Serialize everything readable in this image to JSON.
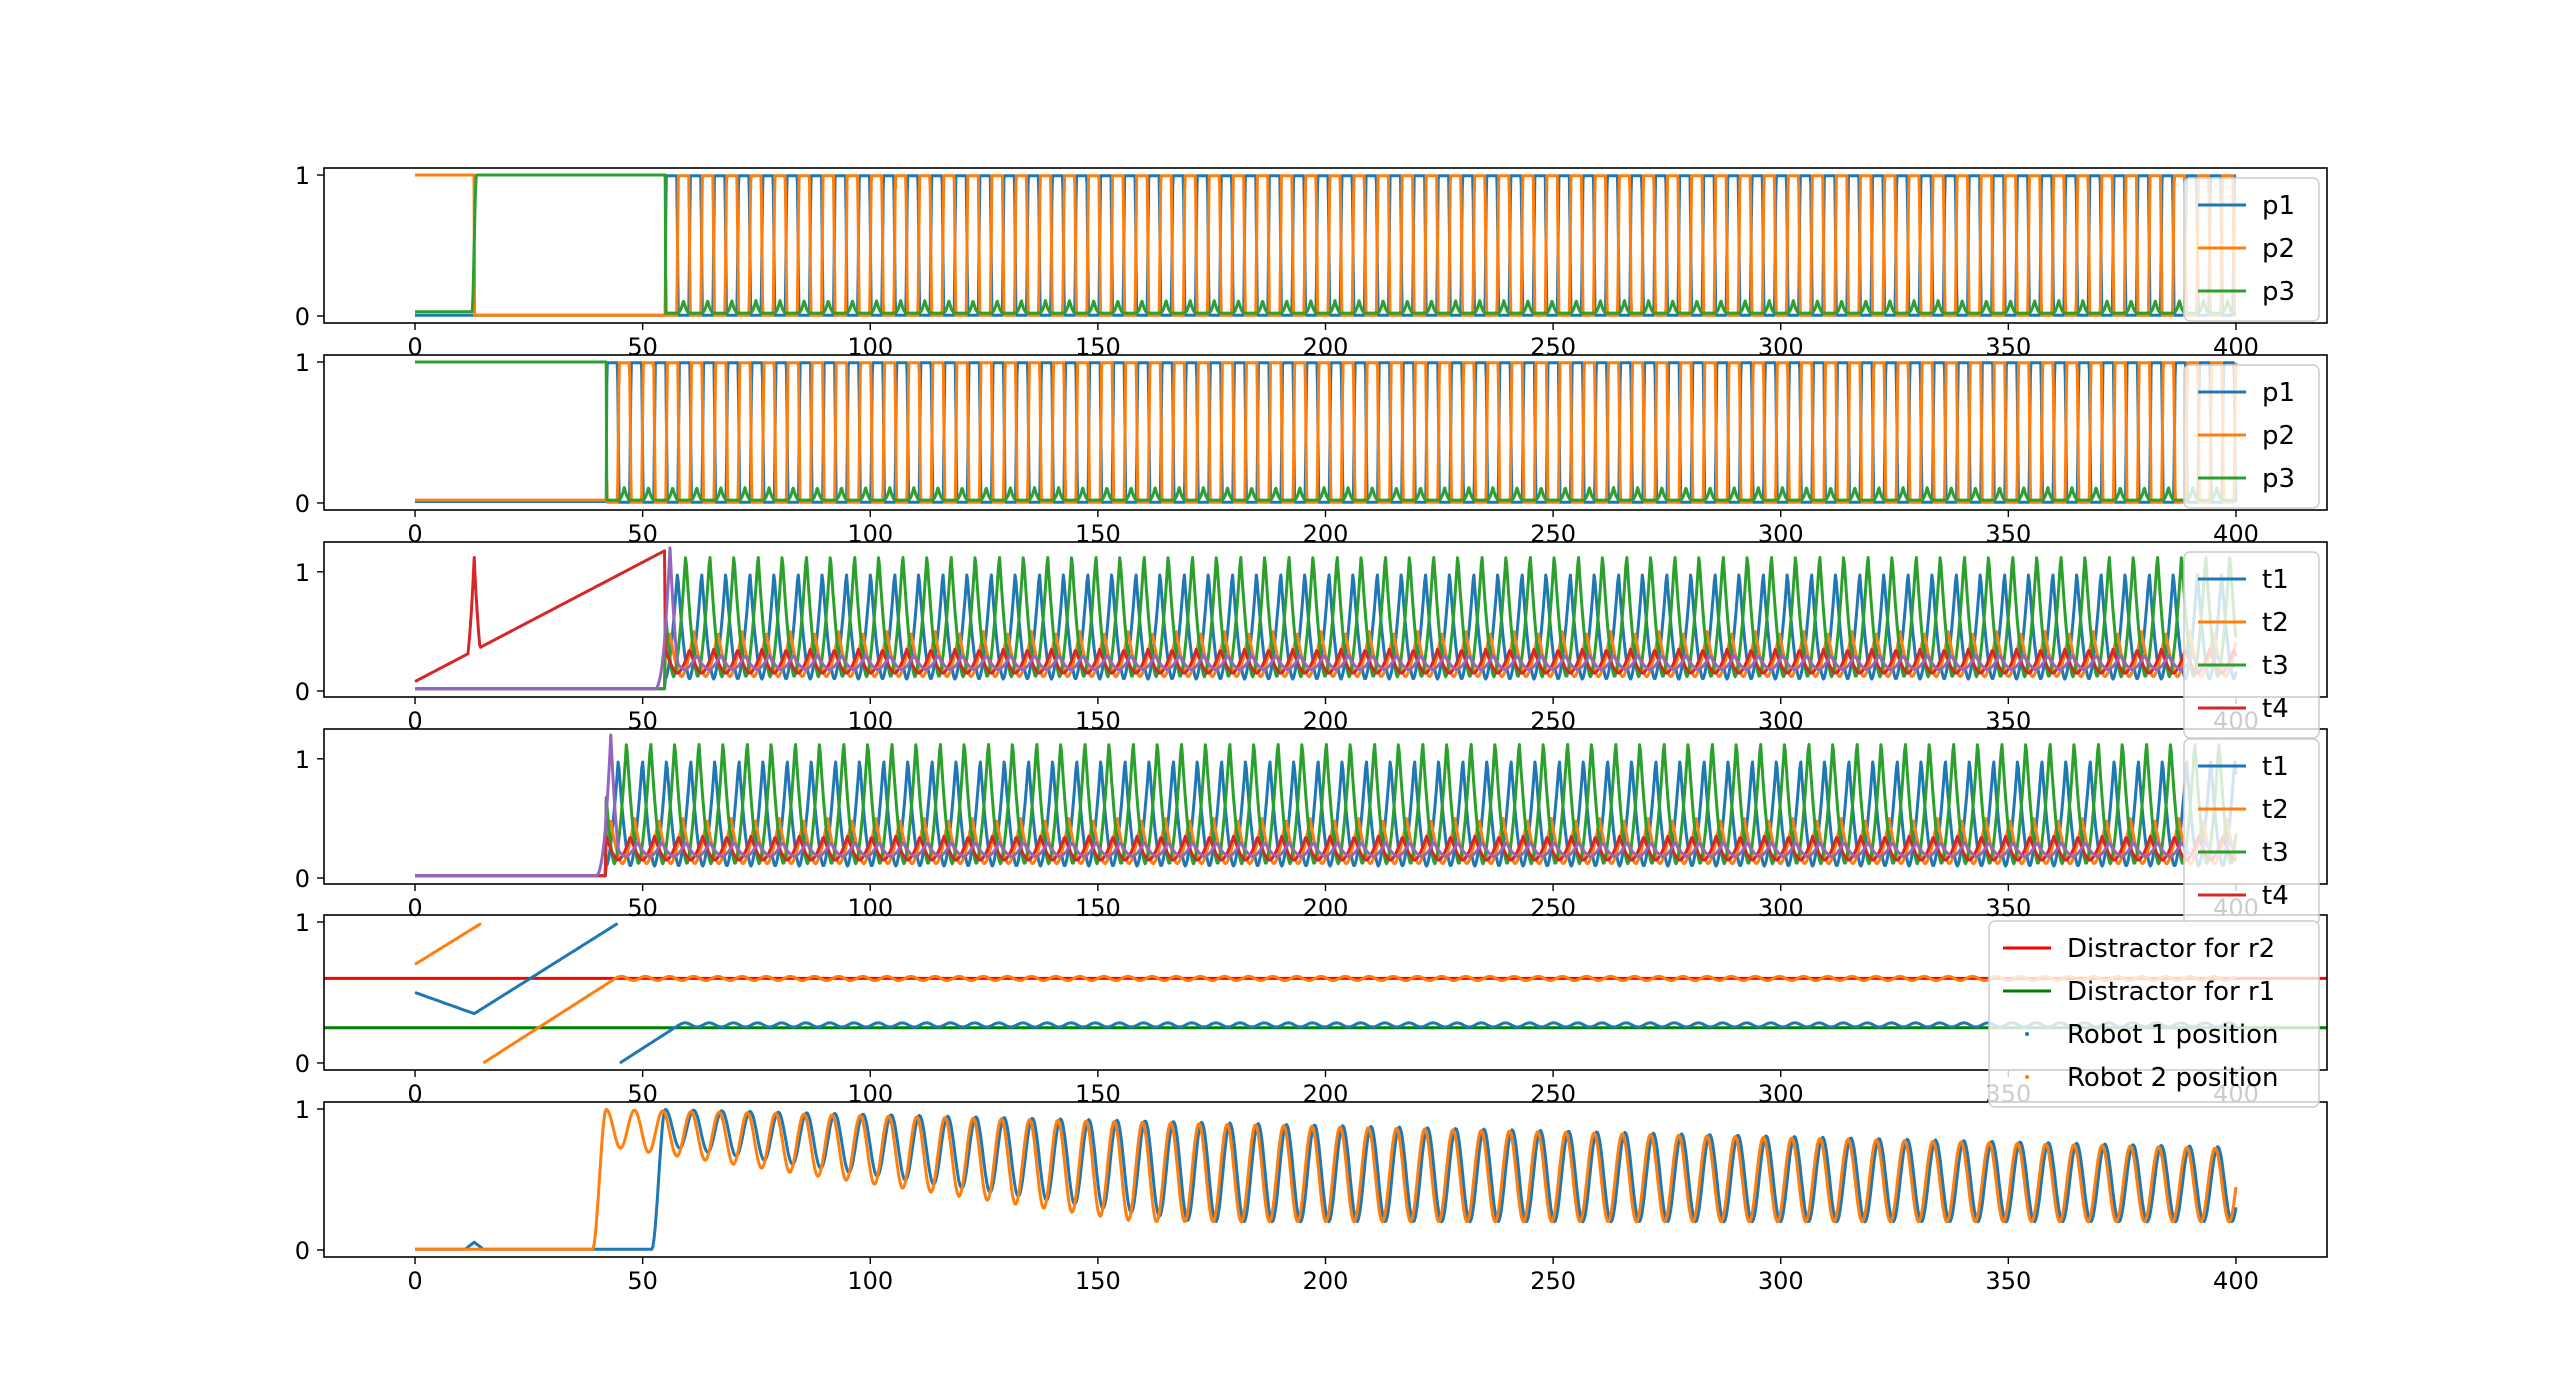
{
  "chart_data": [
    {
      "type": "line",
      "x_range": [
        0,
        400
      ],
      "xlim": [
        -20,
        420
      ],
      "ylim": [
        -0.05,
        1.05
      ],
      "x_ticks": [
        0,
        50,
        100,
        150,
        200,
        250,
        300,
        350,
        400
      ],
      "x_tick_labels": [
        "0",
        "50",
        "100",
        "150",
        "200",
        "250",
        "300",
        "350",
        "400"
      ],
      "y_ticks": [
        0,
        1
      ],
      "y_tick_labels": [
        "0",
        "1"
      ],
      "legend_position": "right",
      "series": [
        {
          "name": "p1",
          "color": "#1f77b4",
          "description": "stays at 0 until t≈55, then oscillates between 0 and 1 with period ≈5.3"
        },
        {
          "name": "p2",
          "color": "#ff7f0e",
          "description": "at 1 from 0 to t≈13, then 0 until t≈55, then oscillates between 0 and 1"
        },
        {
          "name": "p3",
          "color": "#2ca02c",
          "description": "near 0 until t≈13, at 1 from 13 to 55, then oscillates with small peaks near 0.1"
        }
      ]
    },
    {
      "type": "line",
      "x_range": [
        0,
        400
      ],
      "xlim": [
        -20,
        420
      ],
      "ylim": [
        -0.05,
        1.05
      ],
      "x_ticks": [
        0,
        50,
        100,
        150,
        200,
        250,
        300,
        350,
        400
      ],
      "x_tick_labels": [
        "0",
        "50",
        "100",
        "150",
        "200",
        "250",
        "300",
        "350",
        "400"
      ],
      "y_ticks": [
        0,
        1
      ],
      "y_tick_labels": [
        "0",
        "1"
      ],
      "legend_position": "right",
      "series": [
        {
          "name": "p1",
          "color": "#1f77b4",
          "description": "near 0 until t≈42, then oscillates between 0 and 1"
        },
        {
          "name": "p2",
          "color": "#ff7f0e",
          "description": "near 0 until t≈42, then oscillates between 0 and 1"
        },
        {
          "name": "p3",
          "color": "#2ca02c",
          "description": "at 1 from 0 to t≈42, then oscillates with small peaks near 0.1"
        }
      ]
    },
    {
      "type": "line",
      "x_range": [
        0,
        400
      ],
      "xlim": [
        -20,
        420
      ],
      "ylim": [
        -0.05,
        1.25
      ],
      "x_ticks": [
        0,
        50,
        100,
        150,
        200,
        250,
        300,
        350,
        400
      ],
      "x_tick_labels": [
        "0",
        "50",
        "100",
        "150",
        "200",
        "250",
        "300",
        "350",
        "400"
      ],
      "y_ticks": [
        0,
        1
      ],
      "y_tick_labels": [
        "0",
        "1"
      ],
      "legend_position": "right",
      "series": [
        {
          "name": "t1",
          "color": "#1f77b4",
          "description": "after t≈55 oscillates between 0.1 and 1.0"
        },
        {
          "name": "t2",
          "color": "#ff7f0e",
          "description": "after t≈55 oscillates between 0.1 and 0.5"
        },
        {
          "name": "t3",
          "color": "#2ca02c",
          "description": "after t≈55 oscillates between 0.1 and 1.15"
        },
        {
          "name": "t4",
          "color": "#d62728",
          "description": "spike to 1.1 at t≈13, then small oscillations near 0.2"
        },
        {
          "name": "",
          "color": "#9467bd",
          "description": "spike to 1.2 at t≈56, then small oscillations near 0.25"
        }
      ]
    },
    {
      "type": "line",
      "x_range": [
        0,
        400
      ],
      "xlim": [
        -20,
        420
      ],
      "ylim": [
        -0.05,
        1.25
      ],
      "x_ticks": [
        0,
        50,
        100,
        150,
        200,
        250,
        300,
        350,
        400
      ],
      "x_tick_labels": [
        "0",
        "50",
        "100",
        "150",
        "200",
        "250",
        "300",
        "350",
        "400"
      ],
      "y_ticks": [
        0,
        1
      ],
      "y_tick_labels": [
        "0",
        "1"
      ],
      "legend_position": "right",
      "series": [
        {
          "name": "t1",
          "color": "#1f77b4",
          "description": "after t≈42 oscillates between 0.1 and 1.0"
        },
        {
          "name": "t2",
          "color": "#ff7f0e",
          "description": "after t≈42 oscillates between 0.1 and 0.5"
        },
        {
          "name": "t3",
          "color": "#2ca02c",
          "description": "after t≈42 oscillates between 0.1 and 1.15"
        },
        {
          "name": "t4",
          "color": "#d62728",
          "description": "small oscillations near 0.2"
        },
        {
          "name": "",
          "color": "#9467bd",
          "description": "spike to 1.2 at t≈42, then small oscillations near 0.25"
        }
      ]
    },
    {
      "type": "line",
      "x_range": [
        0,
        400
      ],
      "xlim": [
        -20,
        420
      ],
      "ylim": [
        -0.05,
        1.05
      ],
      "x_ticks": [
        0,
        50,
        100,
        150,
        200,
        250,
        300,
        350,
        400
      ],
      "x_tick_labels": [
        "0",
        "50",
        "100",
        "150",
        "200",
        "250",
        "300",
        "350",
        "400"
      ],
      "y_ticks": [
        0,
        1
      ],
      "y_tick_labels": [
        "0",
        "1"
      ],
      "legend_position": "top-right",
      "hlines": [
        {
          "name": "Distractor for r2",
          "y": 0.6,
          "color": "#ff0000"
        },
        {
          "name": "Distractor for r1",
          "y": 0.25,
          "color": "#008000"
        }
      ],
      "series": [
        {
          "name": "Robot 1 position",
          "color": "#1f77b4",
          "description": "0.5 at t=0 to 0.35 at t≈13, ramps to 1 at t≈45, wraps to 0, climbs to ≈0.27 and oscillates slightly"
        },
        {
          "name": "Robot 2 position",
          "color": "#ff7f0e",
          "description": "0.7 at t=0 to 1 at t≈15, wraps to 0, ramps to ≈0.6 by t≈45 and oscillates slightly"
        }
      ]
    },
    {
      "type": "line",
      "x_range": [
        0,
        400
      ],
      "xlim": [
        -20,
        420
      ],
      "ylim": [
        -0.05,
        1.05
      ],
      "x_ticks": [
        0,
        50,
        100,
        150,
        200,
        250,
        300,
        350,
        400
      ],
      "x_tick_labels": [
        "0",
        "50",
        "100",
        "150",
        "200",
        "250",
        "300",
        "350",
        "400"
      ],
      "y_ticks": [
        0,
        1
      ],
      "y_tick_labels": [
        "0",
        "1"
      ],
      "series": [
        {
          "name": "",
          "color": "#1f77b4",
          "description": "0 until t≈52, rises to 1, then oscillates with amplitude decaying from 0.5-1.0 to 0.2-0.7"
        },
        {
          "name": "",
          "color": "#ff7f0e",
          "description": "0 until t≈39, rises to 1, then oscillates with amplitude decaying from 0.5-1.0 to 0.2-0.7"
        }
      ]
    }
  ]
}
